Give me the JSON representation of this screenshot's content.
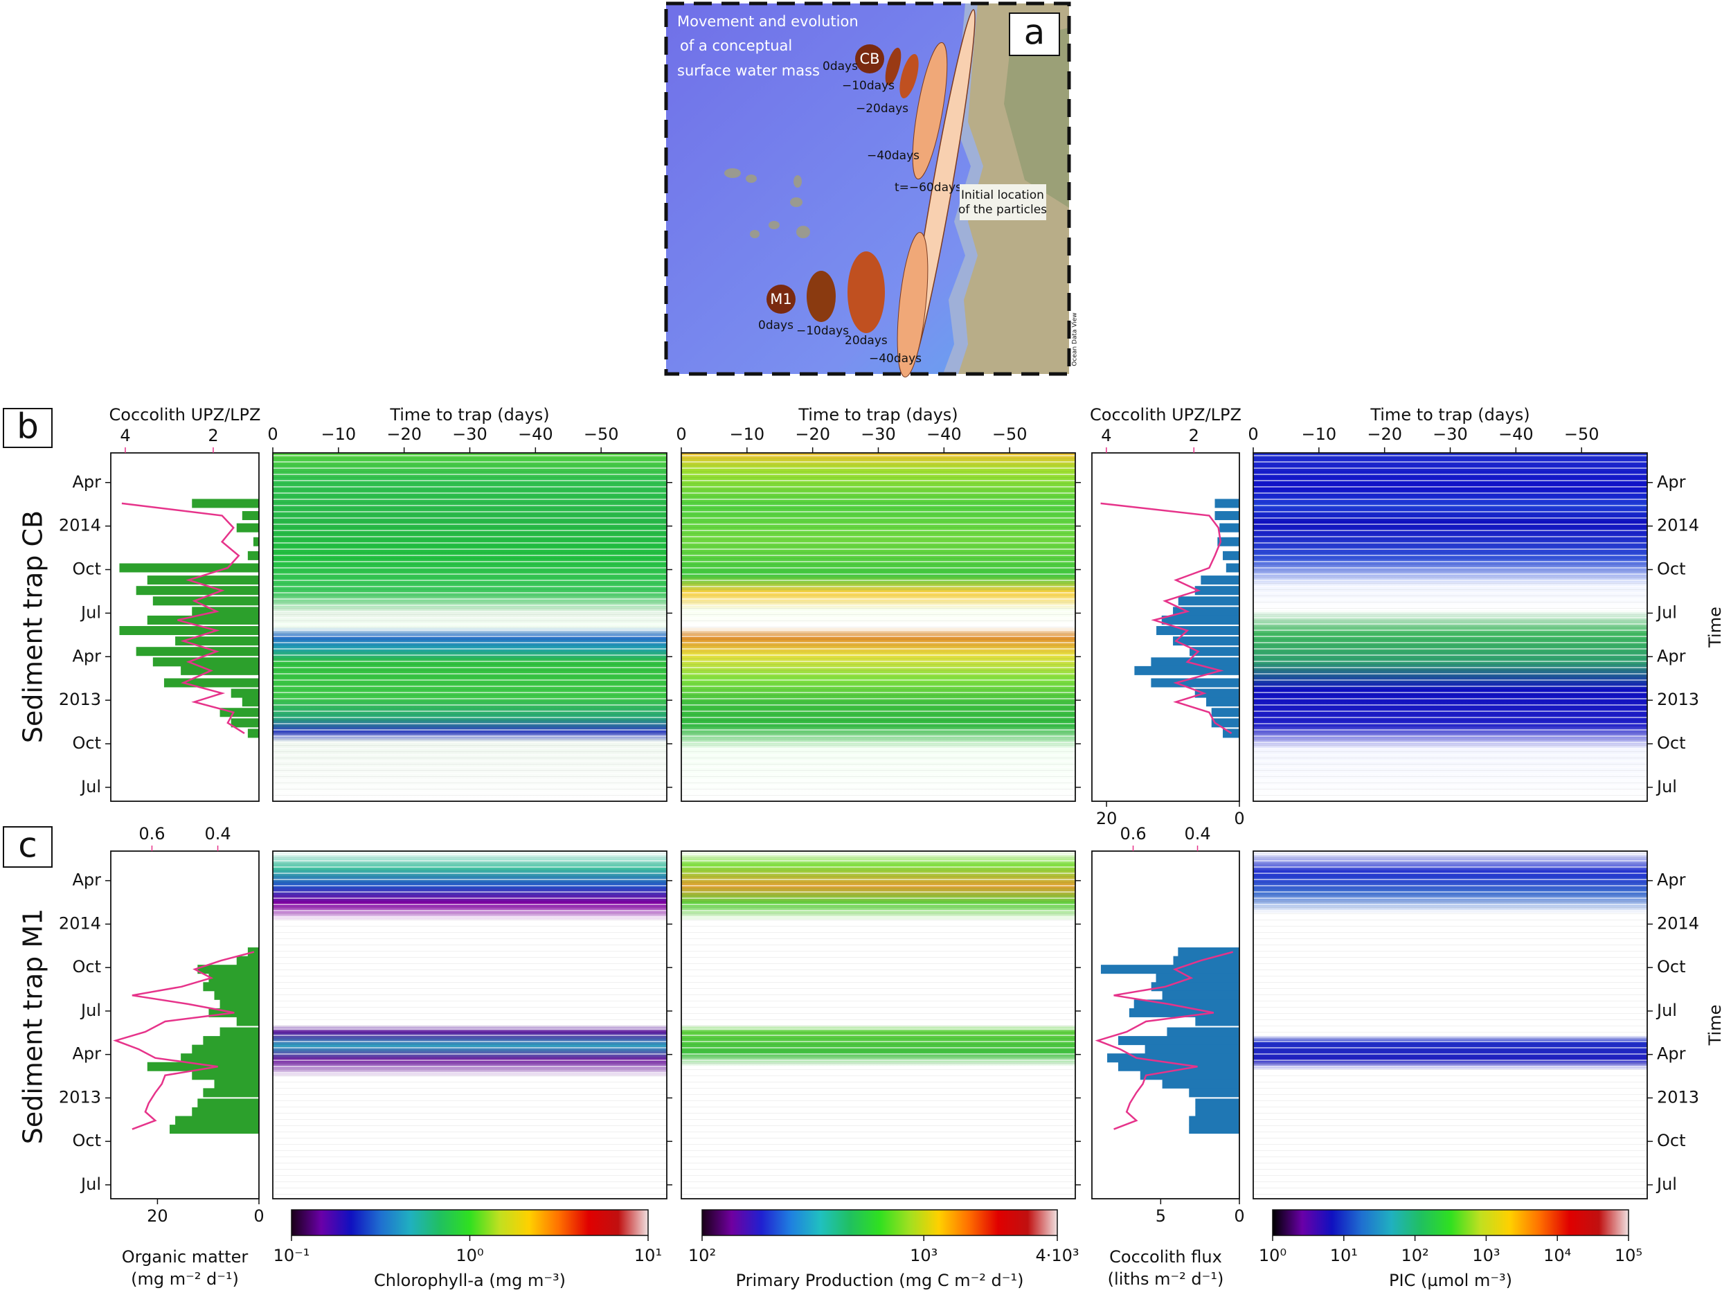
{
  "map": {
    "caption": [
      "Movement and evolution",
      "of a conceptual",
      "surface water mass"
    ],
    "panel_label": "a",
    "sites": [
      "CB",
      "M1"
    ],
    "cb_times": [
      "0days",
      "−10days",
      "−20days",
      "−40days",
      "t=−60days"
    ],
    "m1_times": [
      "0days",
      "−10days",
      "20days",
      "−40days"
    ],
    "note": [
      "Initial location",
      "of the particles"
    ],
    "credit": "Ocean Data View"
  },
  "figure_labels": [
    "b",
    "c"
  ],
  "row_labels": [
    "Sediment trap CB",
    "Sediment trap M1"
  ],
  "chart_data": [
    {
      "type": "barh",
      "y": [
        2014.13,
        2014.06,
        2013.99,
        2013.91,
        2013.83,
        2013.76,
        2013.69,
        2013.63,
        2013.57,
        2013.51,
        2013.46,
        2013.4,
        2013.34,
        2013.28,
        2013.22,
        2013.17,
        2013.1,
        2013.04,
        2012.99,
        2012.93,
        2012.87,
        2012.81
      ],
      "series": [
        {
          "type": "bar",
          "color": "#2ca02c",
          "values": [
            13.2,
            3.3,
            4.4,
            1.1,
            2.2,
            27.5,
            22,
            24.2,
            20.9,
            13.2,
            22,
            27.5,
            16.5,
            24.2,
            20.9,
            15.4,
            18.7,
            5.5,
            3.3,
            7.7,
            5.5,
            2.2
          ]
        },
        {
          "type": "line",
          "axis": "x2",
          "color": "#e6338a",
          "values": [
            4.08,
            1.8,
            1.54,
            1.8,
            1.42,
            1.67,
            2.56,
            1.8,
            2.43,
            1.92,
            2.81,
            1.92,
            2.68,
            1.92,
            2.56,
            2.05,
            2.68,
            1.8,
            2.43,
            1.54,
            1.67,
            1.29
          ]
        }
      ],
      "xlim": [
        29.2,
        0
      ],
      "x2lim": [
        4.33,
        0.96
      ],
      "x2ticks": [
        4,
        2
      ],
      "x2label": "Coccolith UPZ/LPZ",
      "ylim": [
        2012.42,
        2014.42
      ],
      "yticks": [
        {
          "value": 2012.5,
          "label": "Jul"
        },
        {
          "value": 2012.75,
          "label": "Oct"
        },
        2013,
        {
          "value": 2013.25,
          "label": "Apr"
        },
        {
          "value": 2013.5,
          "label": "Jul"
        },
        {
          "value": 2013.75,
          "label": "Oct"
        },
        2014,
        {
          "value": 2014.25,
          "label": "Apr"
        }
      ],
      "ytick_side": "left",
      "ytick_labels": true
    },
    {
      "type": "heatmap",
      "xlim": [
        0,
        -60
      ],
      "xticks": [
        0,
        {
          "value": -10,
          "label": "−10"
        },
        {
          "value": -20,
          "label": "−20"
        },
        {
          "value": -30,
          "label": "−30"
        },
        {
          "value": -40,
          "label": "−40"
        },
        {
          "value": -50,
          "label": "−50"
        }
      ],
      "xlabel": "Time to trap (days)",
      "ylim": [
        2012.42,
        2014.42
      ],
      "yticks": [
        {
          "value": 2012.5,
          "label": "Jul"
        },
        {
          "value": 2012.75,
          "label": "Oct"
        },
        2013,
        {
          "value": 2013.25,
          "label": "Apr"
        },
        {
          "value": 2013.5,
          "label": "Jul"
        },
        {
          "value": 2013.75,
          "label": "Oct"
        },
        2014,
        {
          "value": 2014.25,
          "label": "Apr"
        }
      ],
      "ytick_side": "right",
      "ytick_labels": false
    },
    {
      "type": "heatmap",
      "xlim": [
        0,
        -60
      ],
      "xticks": [
        0,
        {
          "value": -10,
          "label": "−10"
        },
        {
          "value": -20,
          "label": "−20"
        },
        {
          "value": -30,
          "label": "−30"
        },
        {
          "value": -40,
          "label": "−40"
        },
        {
          "value": -50,
          "label": "−50"
        }
      ],
      "xlabel": "Time to trap (days)",
      "ylim": [
        2012.42,
        2014.42
      ],
      "yticks": [
        {
          "value": 2012.5,
          "label": "Jul"
        },
        {
          "value": 2012.75,
          "label": "Oct"
        },
        2013,
        {
          "value": 2013.25,
          "label": "Apr"
        },
        {
          "value": 2013.5,
          "label": "Jul"
        },
        {
          "value": 2013.75,
          "label": "Oct"
        },
        2014,
        {
          "value": 2014.25,
          "label": "Apr"
        }
      ],
      "ytick_side": "right",
      "ytick_labels": false
    },
    {
      "type": "barh",
      "y": [
        2014.13,
        2014.06,
        2013.99,
        2013.91,
        2013.83,
        2013.76,
        2013.69,
        2013.63,
        2013.57,
        2013.51,
        2013.46,
        2013.4,
        2013.34,
        2013.28,
        2013.22,
        2013.17,
        2013.1,
        2013.04,
        2012.99,
        2012.93,
        2012.87,
        2012.81
      ],
      "series": [
        {
          "type": "bar",
          "color": "#1f77b4",
          "values": [
            3.7,
            3.7,
            3,
            3.3,
            2.5,
            2,
            5.8,
            6.7,
            9.2,
            10,
            11.7,
            12.5,
            10,
            7.5,
            13.3,
            15.8,
            13.3,
            6.7,
            5,
            4.2,
            4.2,
            2.5
          ]
        },
        {
          "type": "line",
          "axis": "x2",
          "color": "#e6338a",
          "values": [
            4.13,
            1.65,
            1.44,
            1.39,
            1.52,
            1.65,
            2.41,
            1.9,
            2.66,
            2.15,
            2.91,
            2.15,
            2.41,
            1.9,
            2.15,
            1.39,
            2.41,
            1.77,
            2.41,
            1.65,
            1.52,
            1.14
          ]
        }
      ],
      "xlim": [
        22.2,
        0
      ],
      "xticks": [
        20,
        0
      ],
      "x2lim": [
        4.33,
        0.96
      ],
      "x2ticks": [
        4,
        2
      ],
      "x2label": "Coccolith UPZ/LPZ",
      "ylim": [
        2012.42,
        2014.42
      ]
    },
    {
      "type": "heatmap",
      "xlim": [
        0,
        -60
      ],
      "xticks": [
        0,
        {
          "value": -10,
          "label": "−10"
        },
        {
          "value": -20,
          "label": "−20"
        },
        {
          "value": -30,
          "label": "−30"
        },
        {
          "value": -40,
          "label": "−40"
        },
        {
          "value": -50,
          "label": "−50"
        }
      ],
      "xlabel": "Time to trap (days)",
      "ylim": [
        2012.42,
        2014.42
      ],
      "yticks": [
        {
          "value": 2012.5,
          "label": "Jul"
        },
        {
          "value": 2012.75,
          "label": "Oct"
        },
        2013,
        {
          "value": 2013.25,
          "label": "Apr"
        },
        {
          "value": 2013.5,
          "label": "Jul"
        },
        {
          "value": 2013.75,
          "label": "Oct"
        },
        2014,
        {
          "value": 2014.25,
          "label": "Apr"
        }
      ],
      "ytick_side": "right",
      "ytick_labels": true,
      "ylabel": "Time"
    },
    {
      "type": "barh",
      "y": [
        2013.84,
        2013.79,
        2013.74,
        2013.69,
        2013.64,
        2013.59,
        2013.54,
        2013.49,
        2013.44,
        2013.38,
        2013.33,
        2013.28,
        2013.23,
        2013.18,
        2013.13,
        2013.08,
        2013.03,
        2012.97,
        2012.92,
        2012.87,
        2012.82
      ],
      "series": [
        {
          "type": "bar",
          "color": "#2ca02c",
          "values": [
            2.2,
            4.4,
            12.1,
            9.9,
            11,
            8.8,
            7.7,
            9.9,
            4.4,
            7.7,
            11,
            13.2,
            15.4,
            22,
            13.2,
            8.8,
            11,
            12.1,
            13.2,
            16.5,
            17.6
          ]
        },
        {
          "type": "line",
          "axis": "x2",
          "color": "#e6338a",
          "values": [
            0.29,
            0.39,
            0.47,
            0.42,
            0.51,
            0.66,
            0.49,
            0.35,
            0.56,
            0.62,
            0.71,
            0.64,
            0.59,
            0.4,
            0.56,
            0.57,
            0.59,
            0.61,
            0.62,
            0.59,
            0.66
          ]
        }
      ],
      "xlim": [
        29.2,
        0
      ],
      "xticks": [
        20,
        0
      ],
      "xlabel": [
        "Organic matter",
        "(mg m⁻² d⁻¹)"
      ],
      "x2lim": [
        0.725,
        0.275
      ],
      "x2ticks": [
        0.6,
        0.4
      ],
      "ylim": [
        2012.42,
        2014.42
      ],
      "yticks": [
        {
          "value": 2012.5,
          "label": "Jul"
        },
        {
          "value": 2012.75,
          "label": "Oct"
        },
        2013,
        {
          "value": 2013.25,
          "label": "Apr"
        },
        {
          "value": 2013.5,
          "label": "Jul"
        },
        {
          "value": 2013.75,
          "label": "Oct"
        },
        2014,
        {
          "value": 2014.25,
          "label": "Apr"
        }
      ],
      "ytick_side": "left",
      "ytick_labels": true
    },
    {
      "type": "heatmap",
      "xlim": [
        0,
        -60
      ],
      "ylim": [
        2012.42,
        2014.42
      ],
      "yticks": [
        {
          "value": 2012.5,
          "label": "Jul"
        },
        {
          "value": 2012.75,
          "label": "Oct"
        },
        2013,
        {
          "value": 2013.25,
          "label": "Apr"
        },
        {
          "value": 2013.5,
          "label": "Jul"
        },
        {
          "value": 2013.75,
          "label": "Oct"
        },
        2014,
        {
          "value": 2014.25,
          "label": "Apr"
        }
      ],
      "ytick_side": "right",
      "ytick_labels": false
    },
    {
      "type": "heatmap",
      "xlim": [
        0,
        -60
      ],
      "ylim": [
        2012.42,
        2014.42
      ],
      "yticks": [
        {
          "value": 2012.5,
          "label": "Jul"
        },
        {
          "value": 2012.75,
          "label": "Oct"
        },
        2013,
        {
          "value": 2013.25,
          "label": "Apr"
        },
        {
          "value": 2013.5,
          "label": "Jul"
        },
        {
          "value": 2013.75,
          "label": "Oct"
        },
        2014,
        {
          "value": 2014.25,
          "label": "Apr"
        }
      ],
      "ytick_side": "right",
      "ytick_labels": false
    },
    {
      "type": "barh",
      "y": [
        2013.84,
        2013.79,
        2013.74,
        2013.69,
        2013.64,
        2013.59,
        2013.54,
        2013.49,
        2013.44,
        2013.38,
        2013.33,
        2013.28,
        2013.23,
        2013.18,
        2013.13,
        2013.08,
        2013.03,
        2012.97,
        2012.92,
        2012.87,
        2012.82
      ],
      "series": [
        {
          "type": "bar",
          "color": "#1f77b4",
          "values": [
            3.9,
            4.2,
            8.8,
            5.3,
            5.6,
            4.9,
            6.7,
            7,
            2.8,
            4.6,
            7.7,
            6,
            8.4,
            7.7,
            6.3,
            4.9,
            3.2,
            2.8,
            2.8,
            3.2,
            3.2
          ]
        },
        {
          "type": "line",
          "axis": "x2",
          "color": "#e6338a",
          "values": [
            0.29,
            0.39,
            0.47,
            0.42,
            0.5,
            0.66,
            0.49,
            0.35,
            0.56,
            0.62,
            0.71,
            0.64,
            0.59,
            0.4,
            0.56,
            0.57,
            0.59,
            0.61,
            0.62,
            0.59,
            0.66
          ]
        }
      ],
      "xlim": [
        9.37,
        0
      ],
      "xticks": [
        5,
        0
      ],
      "xlabel": [
        "Coccolith flux",
        "(liths m⁻² d⁻¹)"
      ],
      "x2lim": [
        0.728,
        0.27
      ],
      "x2ticks": [
        0.6,
        0.4
      ],
      "ylim": [
        2012.42,
        2014.42
      ]
    },
    {
      "type": "heatmap",
      "xlim": [
        0,
        -60
      ],
      "ylim": [
        2012.42,
        2014.42
      ],
      "yticks": [
        {
          "value": 2012.5,
          "label": "Jul"
        },
        {
          "value": 2012.75,
          "label": "Oct"
        },
        2013,
        {
          "value": 2013.25,
          "label": "Apr"
        },
        {
          "value": 2013.5,
          "label": "Jul"
        },
        {
          "value": 2013.75,
          "label": "Oct"
        },
        2014,
        {
          "value": 2014.25,
          "label": "Apr"
        }
      ],
      "ytick_side": "right",
      "ytick_labels": true,
      "ylabel": "Time"
    },
    {
      "type": "colorbar",
      "log": true,
      "xlim": [
        0.1,
        10
      ],
      "xticks": [
        {
          "value": 0.1,
          "label": "10⁻¹"
        },
        {
          "value": 1,
          "label": "10⁰"
        },
        {
          "value": 10,
          "label": "10¹"
        }
      ],
      "xlabel": "Chlorophyll-a (mg m⁻³)",
      "colors": [
        "#1a0018",
        "#6a00a8",
        "#1010c0",
        "#1f6fd0",
        "#20b0c0",
        "#20c060",
        "#30e020",
        "#c0e020",
        "#ffd000",
        "#ff7000",
        "#e00000",
        "#c01010",
        "#f0e0e0"
      ]
    },
    {
      "type": "colorbar",
      "log": true,
      "xlim": [
        100,
        4000
      ],
      "xticks": [
        {
          "value": 100,
          "label": "10²"
        },
        {
          "value": 1000,
          "label": "10³"
        },
        {
          "value": 4000,
          "label": "4·10³"
        }
      ],
      "xlabel": "Primary Production (mg C m⁻² d⁻¹)",
      "colors": [
        "#1a0018",
        "#7000a0",
        "#2020d0",
        "#1f80e0",
        "#20c0c0",
        "#20c060",
        "#30e020",
        "#a0e020",
        "#ffd000",
        "#ff7000",
        "#e00000",
        "#c01010",
        "#f0e0e0"
      ]
    },
    {
      "type": "colorbar",
      "log": true,
      "xlim": [
        1,
        100000
      ],
      "xticks": [
        {
          "value": 1,
          "label": "10⁰"
        },
        {
          "value": 10,
          "label": "10¹"
        },
        {
          "value": 100,
          "label": "10²"
        },
        {
          "value": 1000,
          "label": "10³"
        },
        {
          "value": 10000,
          "label": "10⁴"
        },
        {
          "value": 100000,
          "label": "10⁵"
        }
      ],
      "xlabel": "PIC (µmol m⁻³)",
      "colors": [
        "#000000",
        "#6a00a8",
        "#1010c0",
        "#1f6fd0",
        "#20b0c0",
        "#20c060",
        "#30e020",
        "#c0e020",
        "#ffd000",
        "#ff7000",
        "#e00000",
        "#c01010",
        "#f0e0e0"
      ]
    }
  ]
}
